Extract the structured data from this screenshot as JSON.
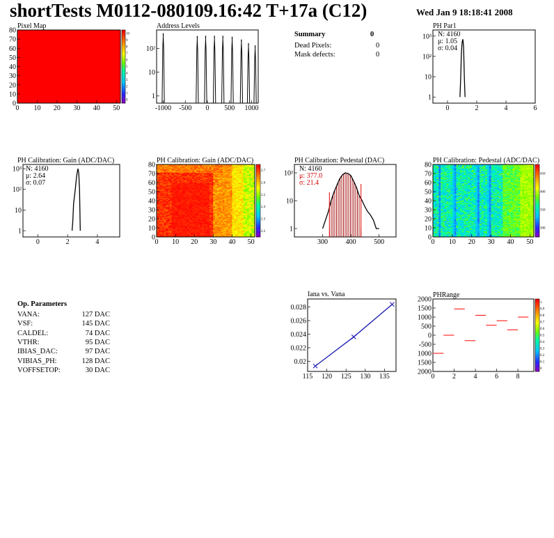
{
  "header": {
    "title": "shortTests M0112-080109.16:42 T+17a (C12)",
    "date": "Wed Jan  9 18:18:41 2008"
  },
  "summary": {
    "title": "Summary",
    "total": "0",
    "rows": [
      {
        "label": "Dead Pixels:",
        "value": "0"
      },
      {
        "label": "Mask defects:",
        "value": "0"
      }
    ]
  },
  "op_parameters": {
    "title": "Op. Parameters",
    "rows": [
      {
        "name": "VANA:",
        "value": "127 DAC"
      },
      {
        "name": "VSF:",
        "value": "145 DAC"
      },
      {
        "name": "CALDEL:",
        "value": "74 DAC"
      },
      {
        "name": "VTHR:",
        "value": "95 DAC"
      },
      {
        "name": "IBIAS_DAC:",
        "value": "97 DAC"
      },
      {
        "name": "VIBIAS_PH:",
        "value": "128 DAC"
      },
      {
        "name": "VOFFSETOP:",
        "value": "30 DAC"
      }
    ]
  },
  "colors": {
    "red": "#ff0000",
    "blue": "#1a1ab0",
    "axis": "#000000"
  },
  "chart_data": [
    {
      "id": "pixel-map",
      "type": "heatmap",
      "title": "Pixel Map",
      "xlim": [
        0,
        52
      ],
      "ylim": [
        0,
        80
      ],
      "xticks": [
        0,
        10,
        20,
        30,
        40,
        50
      ],
      "yticks": [
        0,
        10,
        20,
        30,
        40,
        50,
        60,
        70,
        80
      ],
      "zlim": [
        0,
        10
      ],
      "zticks": [
        "0",
        "1",
        "2",
        "3",
        "4",
        "5",
        "6",
        "7",
        "8",
        "9",
        "10"
      ],
      "fill_value": 10
    },
    {
      "id": "address-levels",
      "type": "line",
      "title": "Address Levels",
      "xlim": [
        -1150,
        1150
      ],
      "ylim": [
        0.5,
        600
      ],
      "log_y": true,
      "xticks": [
        "-1000",
        "-500",
        "0",
        "500",
        "1000"
      ],
      "yticks": [
        "1",
        "10",
        "10²"
      ],
      "peaks": [
        {
          "x": -1000,
          "y": 420
        },
        {
          "x": -230,
          "y": 320
        },
        {
          "x": -40,
          "y": 330
        },
        {
          "x": 160,
          "y": 330
        },
        {
          "x": 350,
          "y": 330
        },
        {
          "x": 560,
          "y": 300
        },
        {
          "x": 770,
          "y": 230
        },
        {
          "x": 930,
          "y": 160
        },
        {
          "x": 1080,
          "y": 130
        }
      ]
    },
    {
      "id": "ph-par1",
      "type": "line",
      "title": "PH Par1",
      "xlim": [
        -1,
        6
      ],
      "ylim": [
        0.5,
        2000
      ],
      "log_y": true,
      "xticks": [
        "0",
        "2",
        "4",
        "6"
      ],
      "yticks": [
        "1",
        "10",
        "10²",
        "10³"
      ],
      "stats": [
        {
          "label": "N:",
          "value": "4160"
        },
        {
          "label": "μ:",
          "value": "1.05"
        },
        {
          "label": "σ:",
          "value": "0.04"
        }
      ],
      "x": [
        0.85,
        0.9,
        0.95,
        1.0,
        1.05,
        1.1,
        1.15,
        1.2
      ],
      "y": [
        1,
        8,
        150,
        500,
        700,
        300,
        10,
        1
      ]
    },
    {
      "id": "gain-1d",
      "type": "line",
      "title": "PH Calibration: Gain (ADC/DAC)",
      "xlim": [
        -1,
        5.5
      ],
      "ylim": [
        0.5,
        1600
      ],
      "log_y": true,
      "xticks": [
        "0",
        "2",
        "4"
      ],
      "yticks": [
        "1",
        "10",
        "10²",
        "10³"
      ],
      "stats": [
        {
          "label": "N:",
          "value": "4160"
        },
        {
          "label": "μ:",
          "value": "2.64"
        },
        {
          "label": "σ:",
          "value": "0.07"
        }
      ],
      "x": [
        2.3,
        2.35,
        2.4,
        2.45,
        2.5,
        2.55,
        2.6,
        2.65,
        2.7,
        2.75,
        2.8,
        2.85
      ],
      "y": [
        1,
        3,
        20,
        40,
        80,
        180,
        400,
        700,
        1000,
        600,
        100,
        1
      ]
    },
    {
      "id": "gain-map",
      "type": "heatmap",
      "title": "PH Calibration: Gain (ADC/DAC)",
      "xlim": [
        0,
        52
      ],
      "ylim": [
        0,
        80
      ],
      "xticks": [
        0,
        10,
        20,
        30,
        40,
        50
      ],
      "yticks": [
        0,
        10,
        20,
        30,
        40,
        50,
        60,
        70,
        80
      ],
      "zlim": [
        2.1,
        2.8
      ],
      "zticks": [
        "2.2",
        "2.3",
        "2.4",
        "2.5",
        "2.6",
        "2.7"
      ]
    },
    {
      "id": "pedestal-1d",
      "type": "line",
      "title": "PH Calibration: Pedestal (DAC)",
      "xlim": [
        200,
        560
      ],
      "ylim": [
        0.5,
        200
      ],
      "log_y": true,
      "xticks": [
        "300",
        "400",
        "500"
      ],
      "yticks": [
        "1",
        "10",
        "10²"
      ],
      "stats": [
        {
          "label": "N:",
          "value": "4160"
        },
        {
          "label": "μ:",
          "value": "377.0"
        },
        {
          "label": "σ:",
          "value": "21.4"
        }
      ],
      "fit_range": [
        324,
        436
      ],
      "x": [
        300,
        310,
        320,
        330,
        340,
        350,
        360,
        370,
        380,
        390,
        400,
        410,
        420,
        430,
        440,
        450,
        460,
        470,
        480,
        490,
        500
      ],
      "y": [
        1,
        2,
        4,
        10,
        20,
        35,
        60,
        85,
        100,
        95,
        80,
        50,
        30,
        15,
        10,
        6,
        4,
        3,
        2,
        1,
        1
      ]
    },
    {
      "id": "pedestal-map",
      "type": "heatmap",
      "title": "PH Calibration: Pedestal (ADC/DAC)",
      "xlim": [
        0,
        52
      ],
      "ylim": [
        0,
        80
      ],
      "xticks": [
        0,
        10,
        20,
        30,
        40,
        50
      ],
      "yticks": [
        0,
        10,
        20,
        30,
        40,
        50,
        60,
        70,
        80
      ],
      "zlim": [
        300,
        450
      ],
      "zticks": [
        "300",
        "350",
        "400",
        "450"
      ]
    },
    {
      "id": "iana-vana",
      "type": "scatter",
      "title": "Iana vs. Vana",
      "xlim": [
        115,
        138
      ],
      "ylim": [
        0.0185,
        0.0292
      ],
      "xticks": [
        "115",
        "120",
        "125",
        "130",
        "135"
      ],
      "yticks": [
        "0.02",
        "0.022",
        "0.024",
        "0.026",
        "0.028"
      ],
      "x": [
        117,
        127,
        137
      ],
      "y": [
        0.0193,
        0.0236,
        0.0284
      ]
    },
    {
      "id": "ph-range",
      "type": "scatter",
      "title": "PHRange",
      "xlim": [
        0,
        9.5
      ],
      "ylim": [
        -2000,
        2000
      ],
      "xticks": [
        "0",
        "2",
        "4",
        "6",
        "8"
      ],
      "yticks": [
        "2000",
        "1500",
        "1000",
        "500",
        "0",
        "-500",
        "1000",
        "1500",
        "2000"
      ],
      "zticks": [
        "0",
        "0.1",
        "0.2",
        "0.3",
        "0.4",
        "0.5",
        "0.6",
        "0.7",
        "0.8",
        "0.9",
        "1"
      ],
      "x": [
        0.5,
        1.5,
        2.5,
        3.5,
        4.5,
        5.5,
        6.5,
        7.5,
        8.5
      ],
      "y": [
        -1000,
        0,
        1450,
        -300,
        1100,
        550,
        800,
        300,
        1000
      ]
    }
  ]
}
